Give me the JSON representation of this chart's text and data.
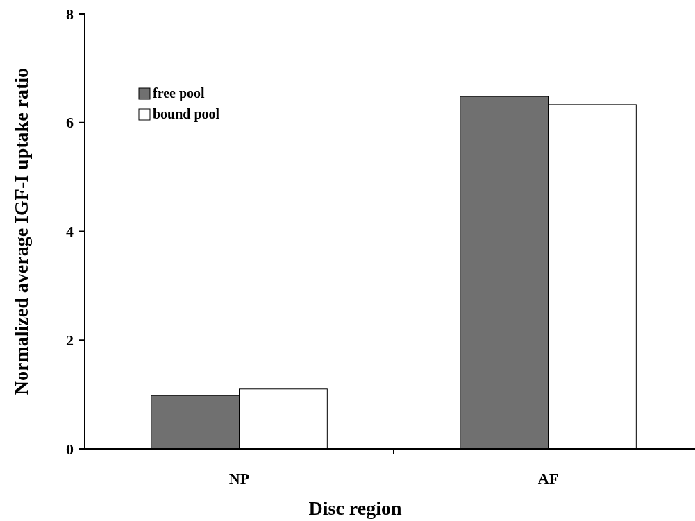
{
  "chart_data": {
    "type": "bar",
    "xlabel": "Disc region",
    "ylabel": "Normalized average IGF-I uptake ratio",
    "categories": [
      "NP",
      "AF"
    ],
    "series": [
      {
        "name": "free pool",
        "color": "#707070",
        "values": [
          0.98,
          6.48
        ]
      },
      {
        "name": "bound pool",
        "color": "#ffffff",
        "values": [
          1.1,
          6.33
        ]
      }
    ],
    "ylim": [
      0,
      8
    ],
    "yticks": [
      0,
      2,
      4,
      6,
      8
    ],
    "legend": "top left"
  }
}
